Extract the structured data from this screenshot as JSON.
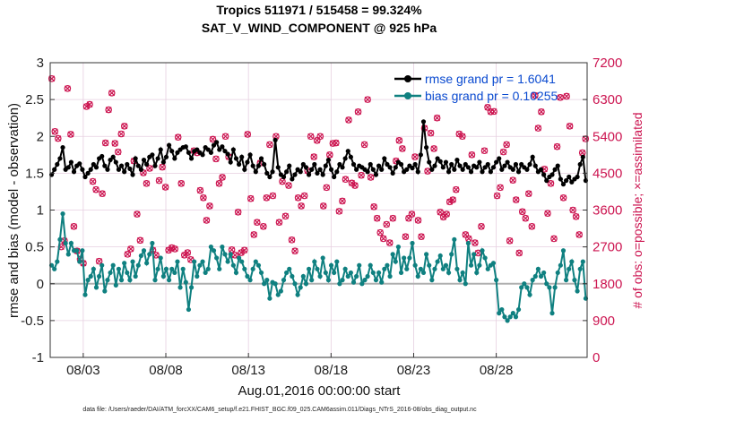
{
  "chart_data": {
    "type": "line",
    "title": "Tropics 511971 / 515458 = 99.324%",
    "subtitle": "SAT_V_WIND_COMPONENT @ 925 hPa",
    "xlabel": "Aug.01,2016 00:00:00 start",
    "ylabel": "rmse and bias (model - observation)",
    "ylabel_right": "# of obs: o=possible; ×=assimilated",
    "footnote": "data file: /Users/raeder/DAI/ATM_forcXX/CAM6_setup/f.e21.FHIST_BGC.f09_025.CAM6assim.011/Diags_NTrS_2016-08/obs_diag_output.nc",
    "xlim": [
      0,
      32.5
    ],
    "ylim": [
      -1,
      3
    ],
    "ylim_right": [
      0,
      7200
    ],
    "x_ticks": [
      2,
      7,
      12,
      17,
      22,
      27
    ],
    "x_tick_labels": [
      "08/03",
      "08/08",
      "08/13",
      "08/18",
      "08/23",
      "08/28"
    ],
    "y_ticks": [
      -1,
      -0.5,
      0,
      0.5,
      1,
      1.5,
      2,
      2.5,
      3
    ],
    "y_tick_labels": [
      "-1",
      "-0.5",
      "0",
      "0.5",
      "1",
      "1.5",
      "2",
      "2.5",
      "3"
    ],
    "y_right_ticks": [
      0,
      900,
      1800,
      2700,
      3600,
      4500,
      5400,
      6300,
      7200
    ],
    "y_right_tick_labels": [
      "0",
      "900",
      "1800",
      "2700",
      "3600",
      "4500",
      "5400",
      "6300",
      "7200"
    ],
    "grid": true,
    "legend_position": "top-right",
    "zero_line": 0,
    "colors": {
      "rmse": "#000000",
      "bias": "#0f8080",
      "obs": "#cc1450",
      "legend_text": "#0a4ad0",
      "grid": "#e6cfe0",
      "zero_line": "#b0b0b0"
    },
    "series": [
      {
        "name": "rmse grand pr = 1.6041",
        "axis": "left",
        "values": [
          1.48,
          1.55,
          1.62,
          1.7,
          1.85,
          1.55,
          1.58,
          1.65,
          1.52,
          1.6,
          1.63,
          1.55,
          1.45,
          1.5,
          1.55,
          1.62,
          1.58,
          1.7,
          1.73,
          1.6,
          1.55,
          1.68,
          1.72,
          1.65,
          1.55,
          1.6,
          1.52,
          1.62,
          1.56,
          1.48,
          1.7,
          1.6,
          1.55,
          1.68,
          1.62,
          1.72,
          1.75,
          1.6,
          1.7,
          1.82,
          1.65,
          1.72,
          1.88,
          1.8,
          1.7,
          1.78,
          1.82,
          1.85,
          1.86,
          1.78,
          1.7,
          1.8,
          1.82,
          1.78,
          1.75,
          1.85,
          1.82,
          1.78,
          1.88,
          1.92,
          1.82,
          1.86,
          1.8,
          1.76,
          1.65,
          1.82,
          1.7,
          1.62,
          1.72,
          1.55,
          1.65,
          1.75,
          1.6,
          1.52,
          1.6,
          1.7,
          1.62,
          1.5,
          1.45,
          1.52,
          1.95,
          1.58,
          1.48,
          1.45,
          1.52,
          1.6,
          1.42,
          1.48,
          1.55,
          1.52,
          1.62,
          1.58,
          1.48,
          1.55,
          1.62,
          1.5,
          1.55,
          1.48,
          1.6,
          1.68,
          1.55,
          1.45,
          1.52,
          1.62,
          1.58,
          1.7,
          1.8,
          1.72,
          1.62,
          1.55,
          1.6,
          1.58,
          1.55,
          1.52,
          1.62,
          1.55,
          1.48,
          1.6,
          1.55,
          1.7,
          1.62,
          1.58,
          1.5,
          1.58,
          1.65,
          1.62,
          1.52,
          1.55,
          1.6,
          1.57,
          1.62,
          1.52,
          1.75,
          2.2,
          1.85,
          1.65,
          1.55,
          1.6,
          1.7,
          1.66,
          1.58,
          1.65,
          1.52,
          1.62,
          1.55,
          1.68,
          1.6,
          1.55,
          1.62,
          1.58,
          1.52,
          1.6,
          1.58,
          1.65,
          1.52,
          1.58,
          1.62,
          1.52,
          1.58,
          1.65,
          1.7,
          1.55,
          1.6,
          1.65,
          1.58,
          1.55,
          1.62,
          1.52,
          1.62,
          1.58,
          1.55,
          1.62,
          1.72,
          1.6,
          1.52,
          1.55,
          1.48,
          1.4,
          1.45,
          1.48,
          1.55,
          1.6,
          1.42,
          1.35,
          1.4,
          1.45,
          1.38,
          1.42,
          1.45,
          1.62,
          1.72,
          1.4
        ]
      },
      {
        "name": "bias grand pr = 0.10255",
        "axis": "left",
        "values": [
          0.25,
          0.2,
          0.3,
          0.6,
          0.95,
          0.55,
          0.4,
          0.55,
          0.45,
          0.45,
          0.3,
          0.45,
          -0.15,
          0.05,
          0.1,
          0.2,
          -0.05,
          0.1,
          0.25,
          -0.1,
          0.05,
          0.15,
          0.25,
          -0.02,
          0.2,
          0.05,
          0.28,
          0.15,
          0.05,
          0.3,
          0.1,
          0.25,
          0.38,
          0.45,
          0.28,
          0.4,
          0.55,
          0.05,
          0.2,
          0.35,
          0.1,
          0.2,
          0.05,
          0.2,
          0.15,
          0.3,
          -0.05,
          0.2,
          0.02,
          -0.35,
          -0.05,
          0.3,
          0.1,
          0.25,
          0.3,
          0.15,
          0.2,
          0.5,
          0.45,
          0.35,
          0.2,
          0.5,
          0.4,
          0.3,
          0.4,
          0.25,
          0.15,
          0.35,
          0.3,
          0.2,
          0.1,
          0.05,
          0.2,
          0.3,
          0.25,
          0.15,
          0.0,
          0.05,
          -0.2,
          0.02,
          0.0,
          -0.15,
          -0.1,
          0.05,
          0.15,
          0.2,
          0.1,
          0.0,
          -0.15,
          -0.05,
          0.1,
          0.0,
          0.2,
          0.05,
          0.3,
          0.2,
          0.1,
          0.35,
          0.15,
          0.05,
          0.25,
          0.15,
          0.3,
          0.0,
          0.05,
          0.2,
          0.1,
          0.15,
          0.02,
          0.1,
          0.25,
          0.0,
          0.05,
          0.1,
          0.25,
          0.15,
          0.05,
          0.15,
          0.02,
          0.2,
          0.25,
          0.1,
          0.4,
          0.3,
          0.5,
          0.15,
          0.35,
          0.2,
          0.35,
          0.55,
          0.25,
          0.1,
          0.2,
          0.15,
          0.4,
          0.25,
          0.05,
          0.2,
          0.3,
          0.38,
          0.2,
          0.25,
          0.15,
          0.4,
          0.6,
          0.2,
          0.05,
          0.15,
          0.0,
          0.55,
          0.25,
          0.4,
          0.15,
          0.25,
          0.45,
          0.35,
          0.2,
          0.25,
          0.28,
          0.05,
          -0.4,
          -0.35,
          -0.45,
          -0.5,
          -0.45,
          -0.4,
          -0.45,
          -0.35,
          -0.05,
          0.0,
          -0.05,
          -0.15,
          0.05,
          0.1,
          0.2,
          0.1,
          0.15,
          0.0,
          -0.05,
          -0.4,
          -0.05,
          0.15,
          0.25,
          0.45,
          0.05,
          0.2,
          0.3,
          0.05,
          -0.1,
          0.2,
          0.3,
          -0.2
        ]
      }
    ],
    "obs_possible": {
      "axis": "right",
      "values": [
        6810,
        5520,
        5350,
        2700,
        2850,
        6570,
        5450,
        3200,
        2600,
        2400,
        2300,
        6130,
        6180,
        4300,
        4100,
        2350,
        4000,
        5240,
        6050,
        6460,
        5230,
        5020,
        5460,
        5650,
        2520,
        2650,
        4800,
        3500,
        2860,
        4510,
        4250,
        4620,
        2620,
        2500,
        4320,
        4650,
        4160,
        2620,
        2680,
        2650,
        5380,
        4250,
        2500,
        2560,
        2390,
        5050,
        5000,
        4080,
        3900,
        3350,
        3700,
        5330,
        4850,
        4250,
        4400,
        5400,
        4900,
        2630,
        2500,
        3550,
        2560,
        2620,
        5450,
        3880,
        3000,
        3300,
        4750,
        3200,
        3900,
        5200,
        3950,
        5400,
        3300,
        4300,
        3450,
        4200,
        2870,
        2600,
        3900,
        3700,
        3950,
        4560,
        5400,
        4900,
        5300,
        5400,
        3700,
        4150,
        4950,
        5230,
        5240,
        3570,
        3820,
        4350,
        5800,
        4260,
        4200,
        6000,
        4450,
        5200,
        6300,
        4400,
        3680,
        3400,
        3050,
        2900,
        3250,
        2800,
        3400,
        4800,
        5300,
        5100,
        2950,
        3400,
        3500,
        4900,
        3350,
        2950,
        5600,
        4550,
        5480,
        5100,
        5850,
        3550,
        3430,
        3500,
        3800,
        3850,
        4100,
        5460,
        5400,
        3000,
        2900,
        4950,
        2800,
        2550,
        3200,
        5050,
        6110,
        6000,
        6010,
        3950,
        4150,
        5020,
        5200,
        2850,
        4330,
        3850,
        2550,
        3560,
        3400,
        4000,
        3200,
        6400,
        5600,
        6000,
        4600,
        3520,
        4250,
        2900,
        5150,
        6350,
        3900,
        6380,
        5650,
        3600,
        3440,
        3000,
        5000,
        5340
      ]
    }
  }
}
